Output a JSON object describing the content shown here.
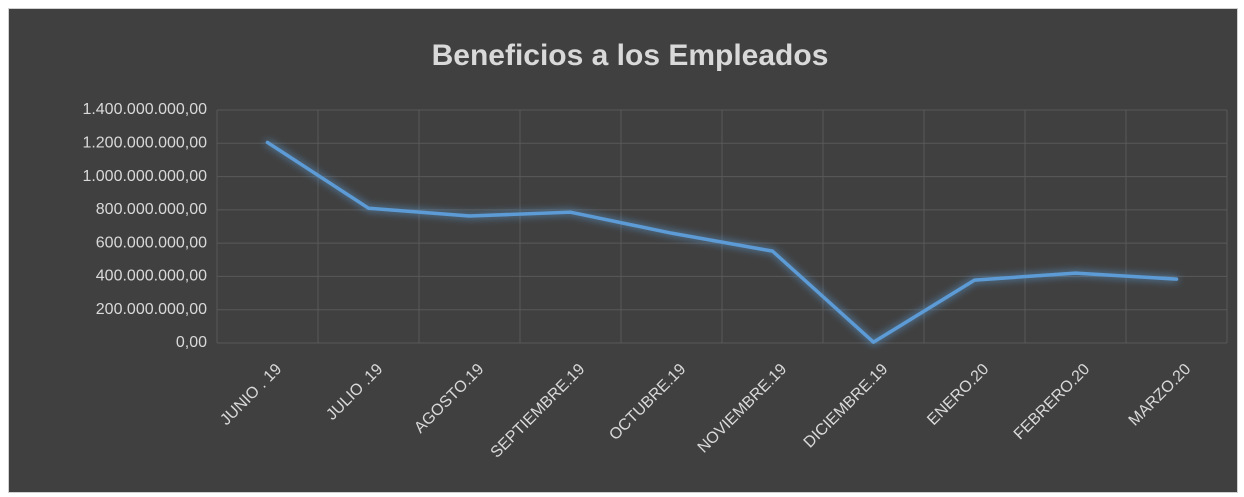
{
  "chart_data": {
    "type": "line",
    "title": "Beneficios a los Empleados",
    "categories": [
      "JUNIO . 19",
      "JULIO .19",
      "AGOSTO.19",
      "SEPTIEMBRE.19",
      "OCTUBRE.19",
      "NOVIEMBRE.19",
      "DICIEMBRE.19",
      "ENERO.20",
      "FEBRERO.20",
      "MARZO.20"
    ],
    "series": [
      {
        "name": "Beneficios a los Empleados",
        "color": "#5b9bd5",
        "values": [
          1205000000,
          810000000,
          763000000,
          786000000,
          660000000,
          552000000,
          5000000,
          378000000,
          420000000,
          384000000
        ]
      }
    ],
    "ylim": [
      0,
      1400000000
    ],
    "yticks": [
      {
        "value": 0,
        "label": "0,00"
      },
      {
        "value": 200000000,
        "label": "200.000.000,00"
      },
      {
        "value": 400000000,
        "label": "400.000.000,00"
      },
      {
        "value": 600000000,
        "label": "600.000.000,00"
      },
      {
        "value": 800000000,
        "label": "800.000.000,00"
      },
      {
        "value": 1000000000,
        "label": "1.000.000.000,00"
      },
      {
        "value": 1200000000,
        "label": "1.200.000.000,00"
      },
      {
        "value": 1400000000,
        "label": "1.400.000.000,00"
      }
    ],
    "grid": true
  }
}
